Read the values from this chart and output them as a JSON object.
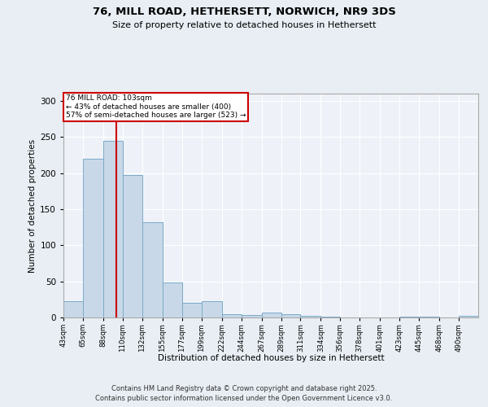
{
  "title1": "76, MILL ROAD, HETHERSETT, NORWICH, NR9 3DS",
  "title2": "Size of property relative to detached houses in Hethersett",
  "xlabel": "Distribution of detached houses by size in Hethersett",
  "ylabel": "Number of detached properties",
  "categories": [
    "43sqm",
    "65sqm",
    "88sqm",
    "110sqm",
    "132sqm",
    "155sqm",
    "177sqm",
    "199sqm",
    "222sqm",
    "244sqm",
    "267sqm",
    "289sqm",
    "311sqm",
    "334sqm",
    "356sqm",
    "378sqm",
    "401sqm",
    "423sqm",
    "445sqm",
    "468sqm",
    "490sqm"
  ],
  "bar_heights": [
    22,
    220,
    245,
    197,
    132,
    48,
    20,
    22,
    5,
    3,
    7,
    4,
    2,
    1,
    0,
    0,
    0,
    1,
    1,
    0,
    2
  ],
  "bar_color": "#c8d8e8",
  "bar_edge_color": "#7aaac8",
  "vline_x": 103,
  "vline_color": "#cc0000",
  "annotation_title": "76 MILL ROAD: 103sqm",
  "annotation_line1": "← 43% of detached houses are smaller (400)",
  "annotation_line2": "57% of semi-detached houses are larger (523) →",
  "annotation_box_color": "#cc0000",
  "ylim": [
    0,
    310
  ],
  "yticks": [
    0,
    50,
    100,
    150,
    200,
    250,
    300
  ],
  "footer": "Contains HM Land Registry data © Crown copyright and database right 2025.\nContains public sector information licensed under the Open Government Licence v3.0.",
  "bg_color": "#e8eef4",
  "plot_bg_color": "#eef2f8"
}
